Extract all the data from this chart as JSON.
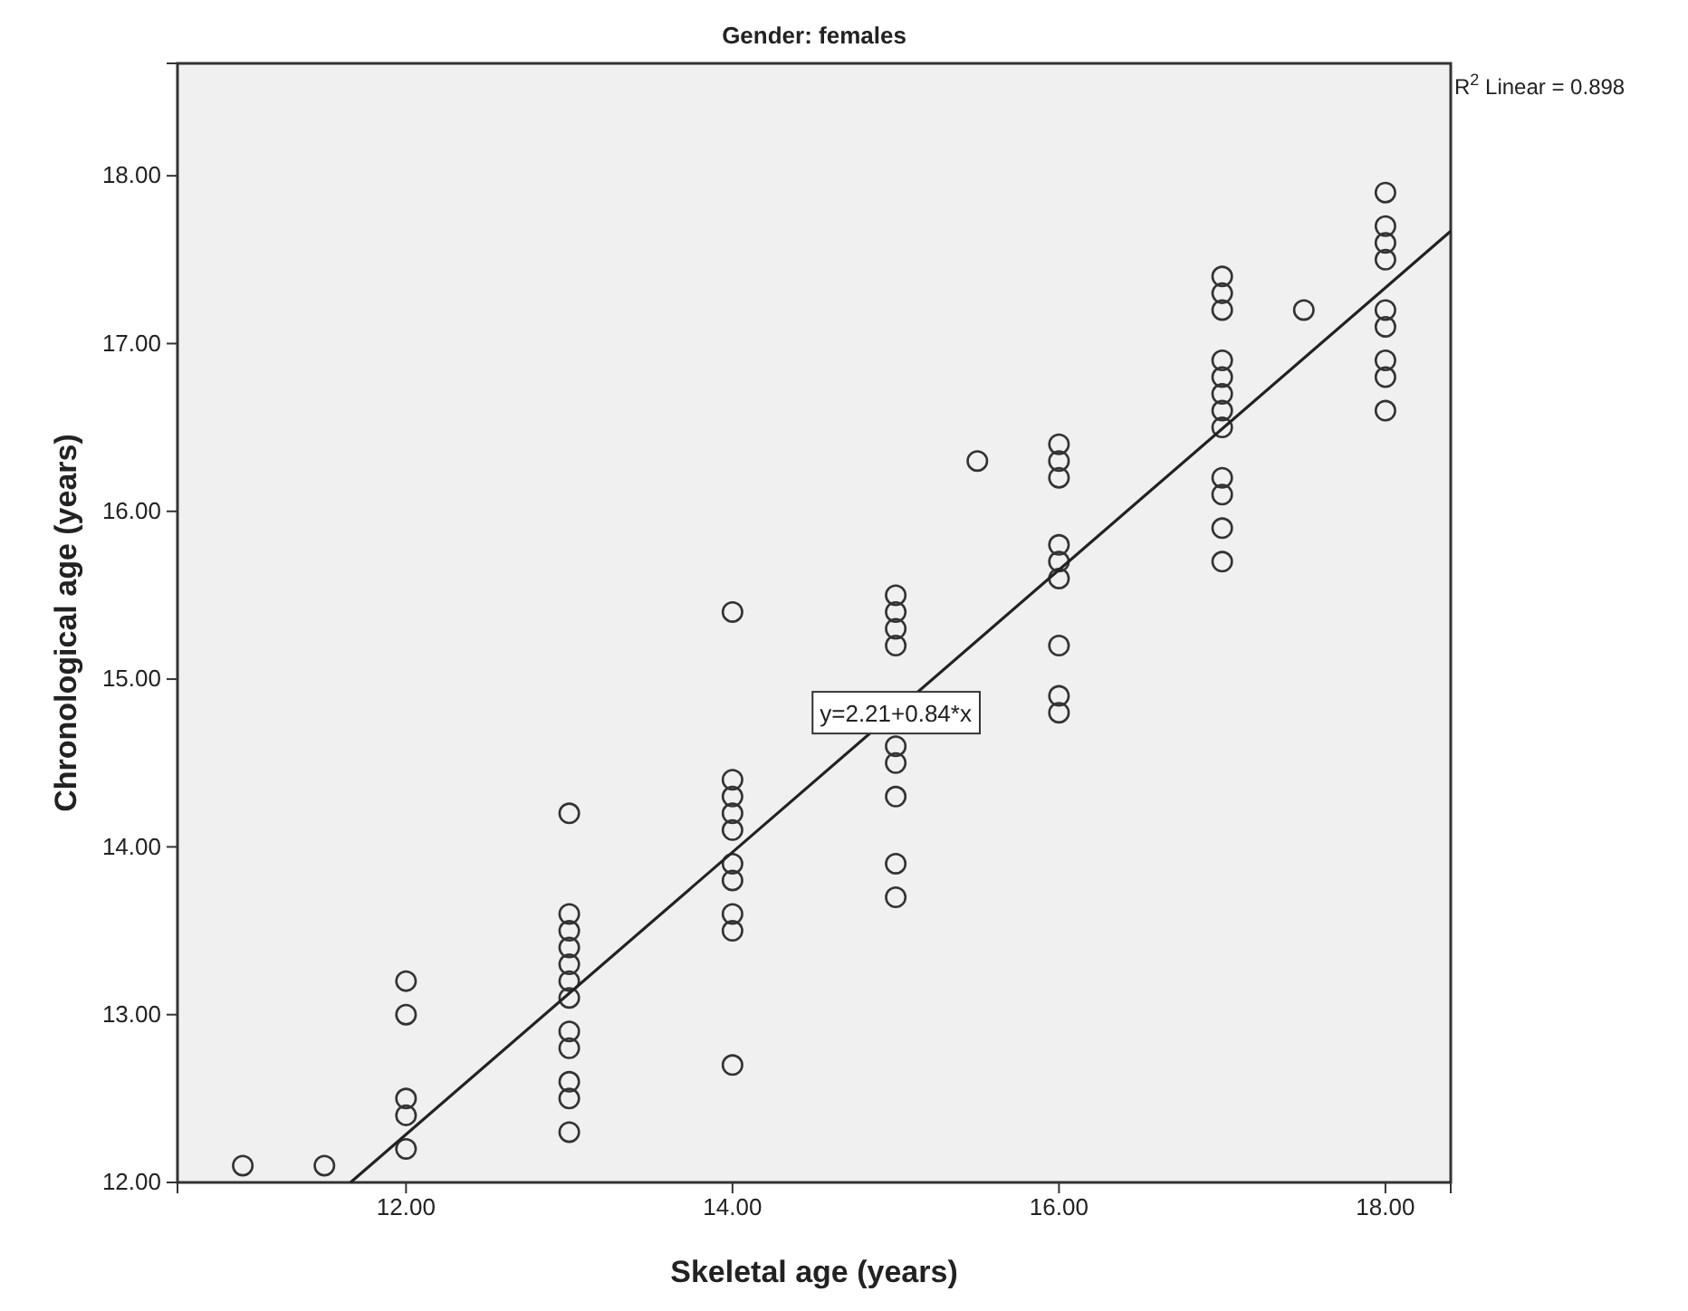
{
  "chart_data": {
    "type": "scatter",
    "title": "Gender: females",
    "xlabel": "Skeletal age (years)",
    "ylabel": "Chronological age (years)",
    "xlim": [
      10.6,
      18.4
    ],
    "ylim": [
      12,
      18.67
    ],
    "xticks": [
      {
        "value": 12,
        "label": "12.00"
      },
      {
        "value": 14,
        "label": "14.00"
      },
      {
        "value": 16,
        "label": "16.00"
      },
      {
        "value": 18,
        "label": "18.00"
      }
    ],
    "yticks": [
      {
        "value": 12,
        "label": "12.00"
      },
      {
        "value": 13,
        "label": "13.00"
      },
      {
        "value": 14,
        "label": "14.00"
      },
      {
        "value": 15,
        "label": "15.00"
      },
      {
        "value": 16,
        "label": "16.00"
      },
      {
        "value": 17,
        "label": "17.00"
      },
      {
        "value": 18,
        "label": "18.00"
      }
    ],
    "grid": false,
    "series": [
      {
        "marker": "circle",
        "color": "#333333",
        "x": [
          11,
          11.5,
          12,
          12,
          12,
          12,
          12,
          13,
          13,
          13,
          13,
          13,
          13,
          13,
          13,
          13,
          13,
          13,
          13,
          14,
          14,
          14,
          14,
          14,
          14,
          14,
          14,
          14,
          14,
          15,
          15,
          15,
          15,
          15,
          15,
          15,
          15,
          15,
          15.5,
          16,
          16,
          16,
          16,
          16,
          16,
          16,
          16,
          16,
          17,
          17,
          17,
          17,
          17,
          17,
          17,
          17,
          17,
          17,
          17,
          17,
          17.5,
          18,
          18,
          18,
          18,
          18,
          18,
          18,
          18,
          18
        ],
        "values": [
          12.1,
          12.1,
          13.2,
          13.0,
          12.5,
          12.4,
          12.2,
          14.2,
          13.6,
          13.5,
          13.4,
          13.3,
          13.2,
          13.1,
          12.9,
          12.8,
          12.6,
          12.5,
          12.3,
          15.4,
          14.4,
          14.3,
          14.2,
          14.1,
          13.9,
          13.8,
          13.6,
          13.5,
          12.7,
          15.5,
          15.4,
          15.3,
          15.2,
          14.6,
          14.5,
          14.3,
          13.9,
          13.7,
          16.3,
          16.4,
          16.3,
          16.2,
          15.8,
          15.7,
          15.6,
          15.2,
          14.9,
          14.8,
          17.4,
          17.3,
          17.2,
          16.9,
          16.8,
          16.7,
          16.6,
          16.5,
          16.2,
          16.1,
          15.9,
          15.7,
          17.2,
          17.9,
          17.7,
          17.6,
          17.5,
          17.2,
          17.1,
          16.9,
          16.8,
          16.6
        ]
      },
      {
        "type": "line",
        "color": "#222222",
        "x": [
          11.66,
          18.4
        ],
        "values": [
          12.0,
          17.67
        ]
      }
    ],
    "annotations": [
      "R$^{2}$ Linear = 0.898",
      {
        "text": "y=2.21+0.84*x",
        "x": 15,
        "y": 14.8
      }
    ]
  }
}
